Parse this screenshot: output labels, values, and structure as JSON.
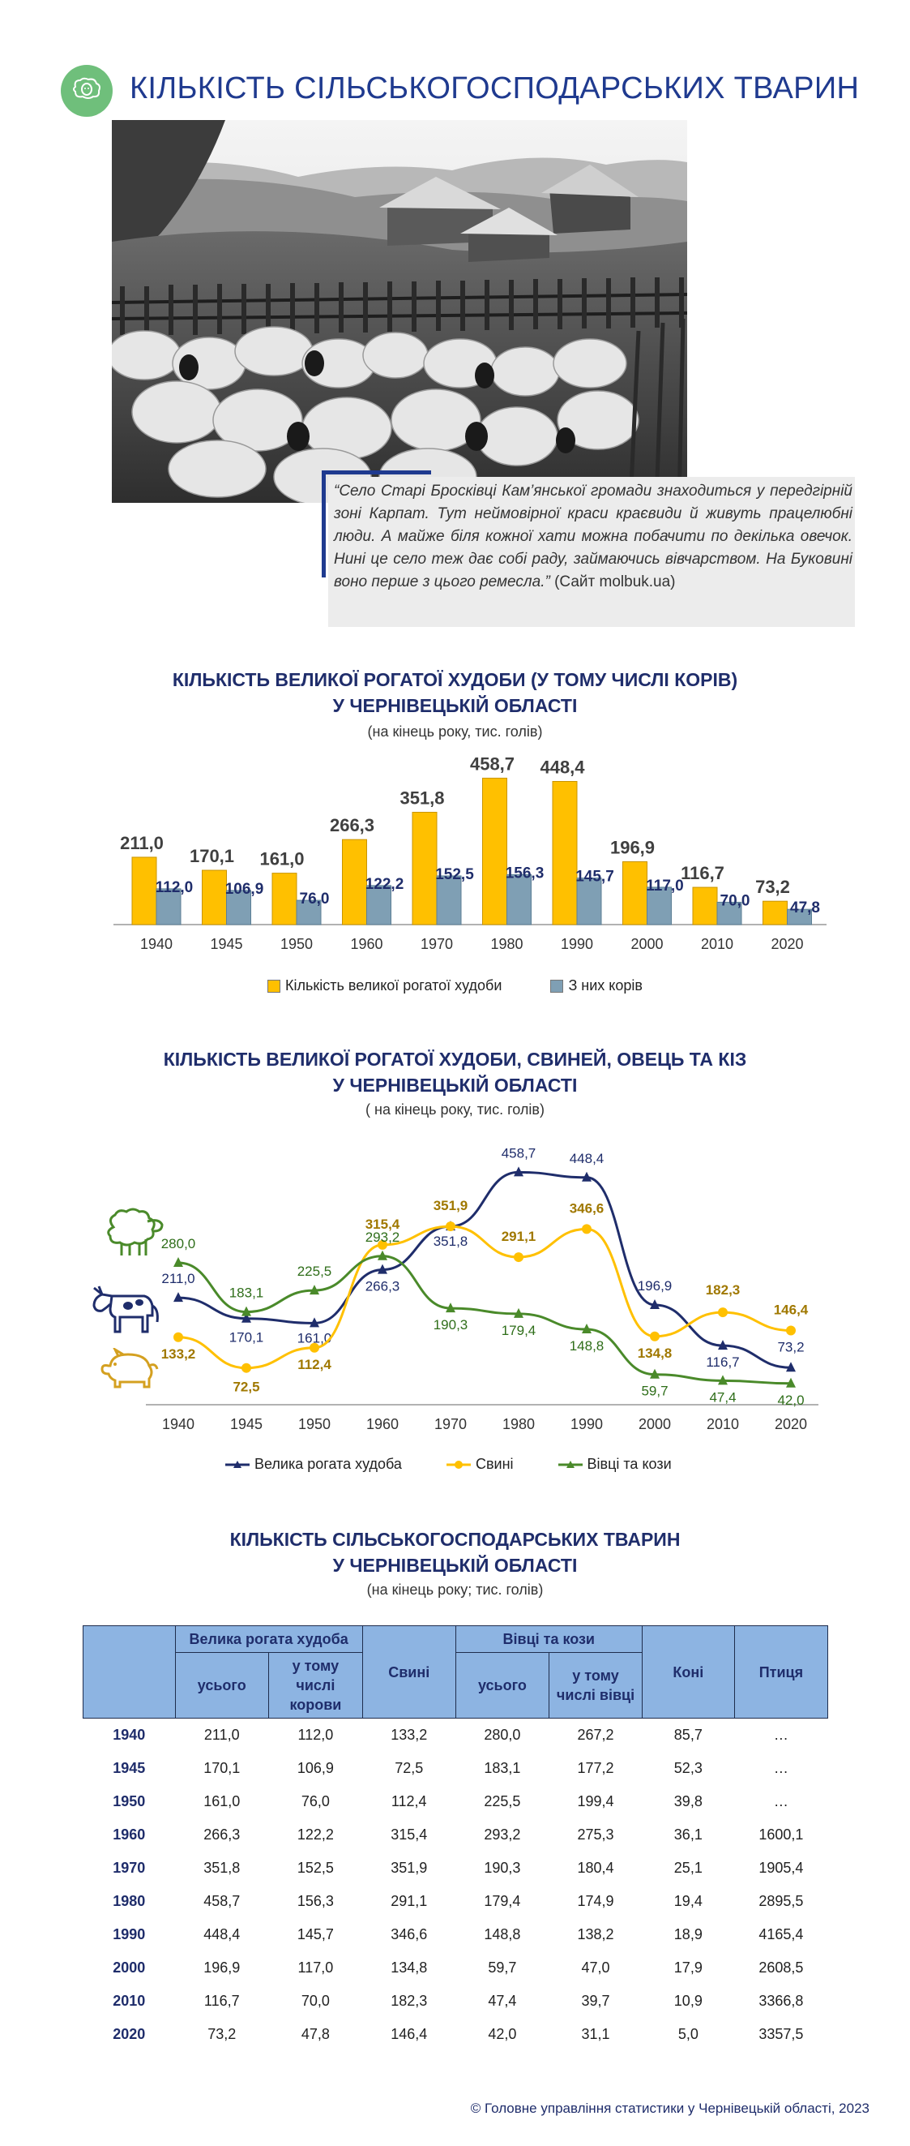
{
  "page": {
    "title": "КІЛЬКІСТЬ СІЛЬСЬКОГОСПОДАРСЬКИХ ТВАРИН",
    "footer": "© Головне управління статистики у Чернівецькій області, 2023"
  },
  "quote": {
    "text": "“Село Старі Бросківці Кам’янської громади знаходиться у передгірній зоні Карпат. Тут неймовірної краси краєвиди й живуть працелюбні люди. А майже біля кожної хати можна побачити по декілька овечок. Нині це село теж дає собі раду, займаючись вівчарством. На Буковині воно перше з цього ремесла.”",
    "source": "(Сайт molbuk.ua)"
  },
  "chart1": {
    "title_line1": "КІЛЬКІСТЬ ВЕЛИКОЇ РОГАТОЇ ХУДОБИ (У ТОМУ ЧИСЛІ КОРІВ)",
    "title_line2": "У ЧЕРНІВЕЦЬКІЙ ОБЛАСТІ",
    "subtitle": "(на кінець року, тис. голів)"
  },
  "chart2": {
    "title_line1": "КІЛЬКІСТЬ ВЕЛИКОЇ РОГАТОЇ ХУДОБИ, СВИНЕЙ, ОВЕЦЬ ТА КІЗ",
    "title_line2": "У ЧЕРНІВЕЦЬКІЙ ОБЛАСТІ",
    "subtitle": "( на кінець року, тис. голів)"
  },
  "table": {
    "title_line1": "КІЛЬКІСТЬ СІЛЬСЬКОГОСПОДАРСЬКИХ ТВАРИН",
    "title_line2": "У ЧЕРНІВЕЦЬКІЙ ОБЛАСТІ",
    "subtitle": "(на кінець року; тис. голів)",
    "headers": {
      "cattle": "Велика рогата худоба",
      "cattle_total": "усього",
      "cattle_cows": "у тому числі корови",
      "pigs": "Свині",
      "sheep": "Вівці та кози",
      "sheep_total": "усього",
      "sheep_of": "у тому числі вівці",
      "horses": "Коні",
      "poultry": "Птиця"
    },
    "rows": [
      [
        "1940",
        "211,0",
        "112,0",
        "133,2",
        "280,0",
        "267,2",
        "85,7",
        "…"
      ],
      [
        "1945",
        "170,1",
        "106,9",
        "72,5",
        "183,1",
        "177,2",
        "52,3",
        "…"
      ],
      [
        "1950",
        "161,0",
        "76,0",
        "112,4",
        "225,5",
        "199,4",
        "39,8",
        "…"
      ],
      [
        "1960",
        "266,3",
        "122,2",
        "315,4",
        "293,2",
        "275,3",
        "36,1",
        "1600,1"
      ],
      [
        "1970",
        "351,8",
        "152,5",
        "351,9",
        "190,3",
        "180,4",
        "25,1",
        "1905,4"
      ],
      [
        "1980",
        "458,7",
        "156,3",
        "291,1",
        "179,4",
        "174,9",
        "19,4",
        "2895,5"
      ],
      [
        "1990",
        "448,4",
        "145,7",
        "346,6",
        "148,8",
        "138,2",
        "18,9",
        "4165,4"
      ],
      [
        "2000",
        "196,9",
        "117,0",
        "134,8",
        "59,7",
        "47,0",
        "17,9",
        "2608,5"
      ],
      [
        "2010",
        "116,7",
        "70,0",
        "182,3",
        "47,4",
        "39,7",
        "10,9",
        "3366,8"
      ],
      [
        "2020",
        "73,2",
        "47,8",
        "146,4",
        "42,0",
        "31,1",
        "5,0",
        "3357,5"
      ]
    ]
  },
  "colors": {
    "cattle_bar": "#ffc000",
    "cows_bar": "#7f9fb4",
    "line_cattle": "#1f2d6b",
    "line_pigs": "#ffc000",
    "line_sheep": "#4a8a2a",
    "table_header": "#8db4e2"
  },
  "chart_data": [
    {
      "type": "bar",
      "categories": [
        "1940",
        "1945",
        "1950",
        "1960",
        "1970",
        "1980",
        "1990",
        "2000",
        "2010",
        "2020"
      ],
      "series": [
        {
          "name": "Кількість великої рогатої худоби",
          "values": [
            211.0,
            170.1,
            161.0,
            266.3,
            351.8,
            458.7,
            448.4,
            196.9,
            116.7,
            73.2
          ],
          "labels": [
            "211,0",
            "170,1",
            "161,0",
            "266,3",
            "351,8",
            "458,7",
            "448,4",
            "196,9",
            "116,7",
            "73,2"
          ]
        },
        {
          "name": "З них корів",
          "values": [
            112.0,
            106.9,
            76.0,
            122.2,
            152.5,
            156.3,
            145.7,
            117.0,
            70.0,
            47.8
          ],
          "labels": [
            "112,0",
            "106,9",
            "76,0",
            "122,2",
            "152,5",
            "156,3",
            "145,7",
            "117,0",
            "70,0",
            "47,8"
          ]
        }
      ],
      "ylim": [
        0,
        470
      ],
      "legend": "bottom"
    },
    {
      "type": "line",
      "categories": [
        "1940",
        "1945",
        "1950",
        "1960",
        "1970",
        "1980",
        "1990",
        "2000",
        "2010",
        "2020"
      ],
      "series": [
        {
          "name": "Велика рогата худоба",
          "values": [
            211.0,
            170.1,
            161.0,
            266.3,
            351.8,
            458.7,
            448.4,
            196.9,
            116.7,
            73.2
          ],
          "labels": [
            "211,0",
            "170,1",
            "161,0",
            "266,3",
            "351,8",
            "458,7",
            "448,4",
            "196,9",
            "116,7",
            "73,2"
          ]
        },
        {
          "name": "Свині",
          "values": [
            133.2,
            72.5,
            112.4,
            315.4,
            351.9,
            291.1,
            346.6,
            134.8,
            182.3,
            146.4
          ],
          "labels": [
            "133,2",
            "72,5",
            "112,4",
            "315,4",
            "351,9",
            "291,1",
            "346,6",
            "134,8",
            "182,3",
            "146,4"
          ]
        },
        {
          "name": "Вівці та кози",
          "values": [
            280.0,
            183.1,
            225.5,
            293.2,
            190.3,
            179.4,
            148.8,
            59.7,
            47.4,
            42.0
          ],
          "labels": [
            "280,0",
            "183,1",
            "225,5",
            "293,2",
            "190,3",
            "179,4",
            "148,8",
            "59,7",
            "47,4",
            "42,0"
          ]
        }
      ],
      "ylim": [
        0,
        480
      ],
      "legend": "bottom"
    }
  ]
}
